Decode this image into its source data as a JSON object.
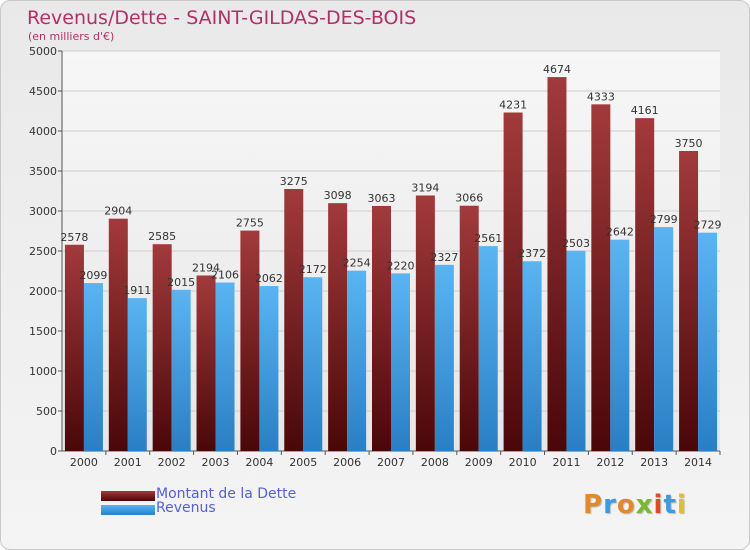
{
  "header": {
    "title": "Revenus/Dette - SAINT-GILDAS-DES-BOIS",
    "subtitle": "(en milliers d'€)"
  },
  "legend": {
    "items": [
      {
        "label": "Montant de la Dette",
        "color": "#7a1f20"
      },
      {
        "label": "Revenus",
        "color": "#4aa3e6"
      }
    ]
  },
  "logo": {
    "text": "Proxiti"
  },
  "colors": {
    "title": "#b0306a",
    "legend_text": "#5560d6",
    "dette": "#7a1f20",
    "revenus": "#4aa3e6"
  },
  "chart_data": {
    "type": "bar",
    "title": "Revenus/Dette - SAINT-GILDAS-DES-BOIS",
    "subtitle": "(en milliers d'€)",
    "categories": [
      "2000",
      "2001",
      "2002",
      "2003",
      "2004",
      "2005",
      "2006",
      "2007",
      "2008",
      "2009",
      "2010",
      "2011",
      "2012",
      "2013",
      "2014"
    ],
    "series": [
      {
        "name": "Montant de la Dette",
        "values": [
          2578,
          2904,
          2585,
          2194,
          2755,
          3275,
          3098,
          3063,
          3194,
          3066,
          4231,
          4674,
          4333,
          4161,
          3750
        ]
      },
      {
        "name": "Revenus",
        "values": [
          2099,
          1911,
          2015,
          2106,
          2062,
          2172,
          2254,
          2220,
          2327,
          2561,
          2372,
          2503,
          2642,
          2799,
          2729
        ]
      }
    ],
    "ylim": [
      0,
      5000
    ],
    "yticks": [
      0,
      500,
      1000,
      1500,
      2000,
      2500,
      3000,
      3500,
      4000,
      4500,
      5000
    ],
    "grid": true,
    "legend_position": "bottom-left"
  }
}
